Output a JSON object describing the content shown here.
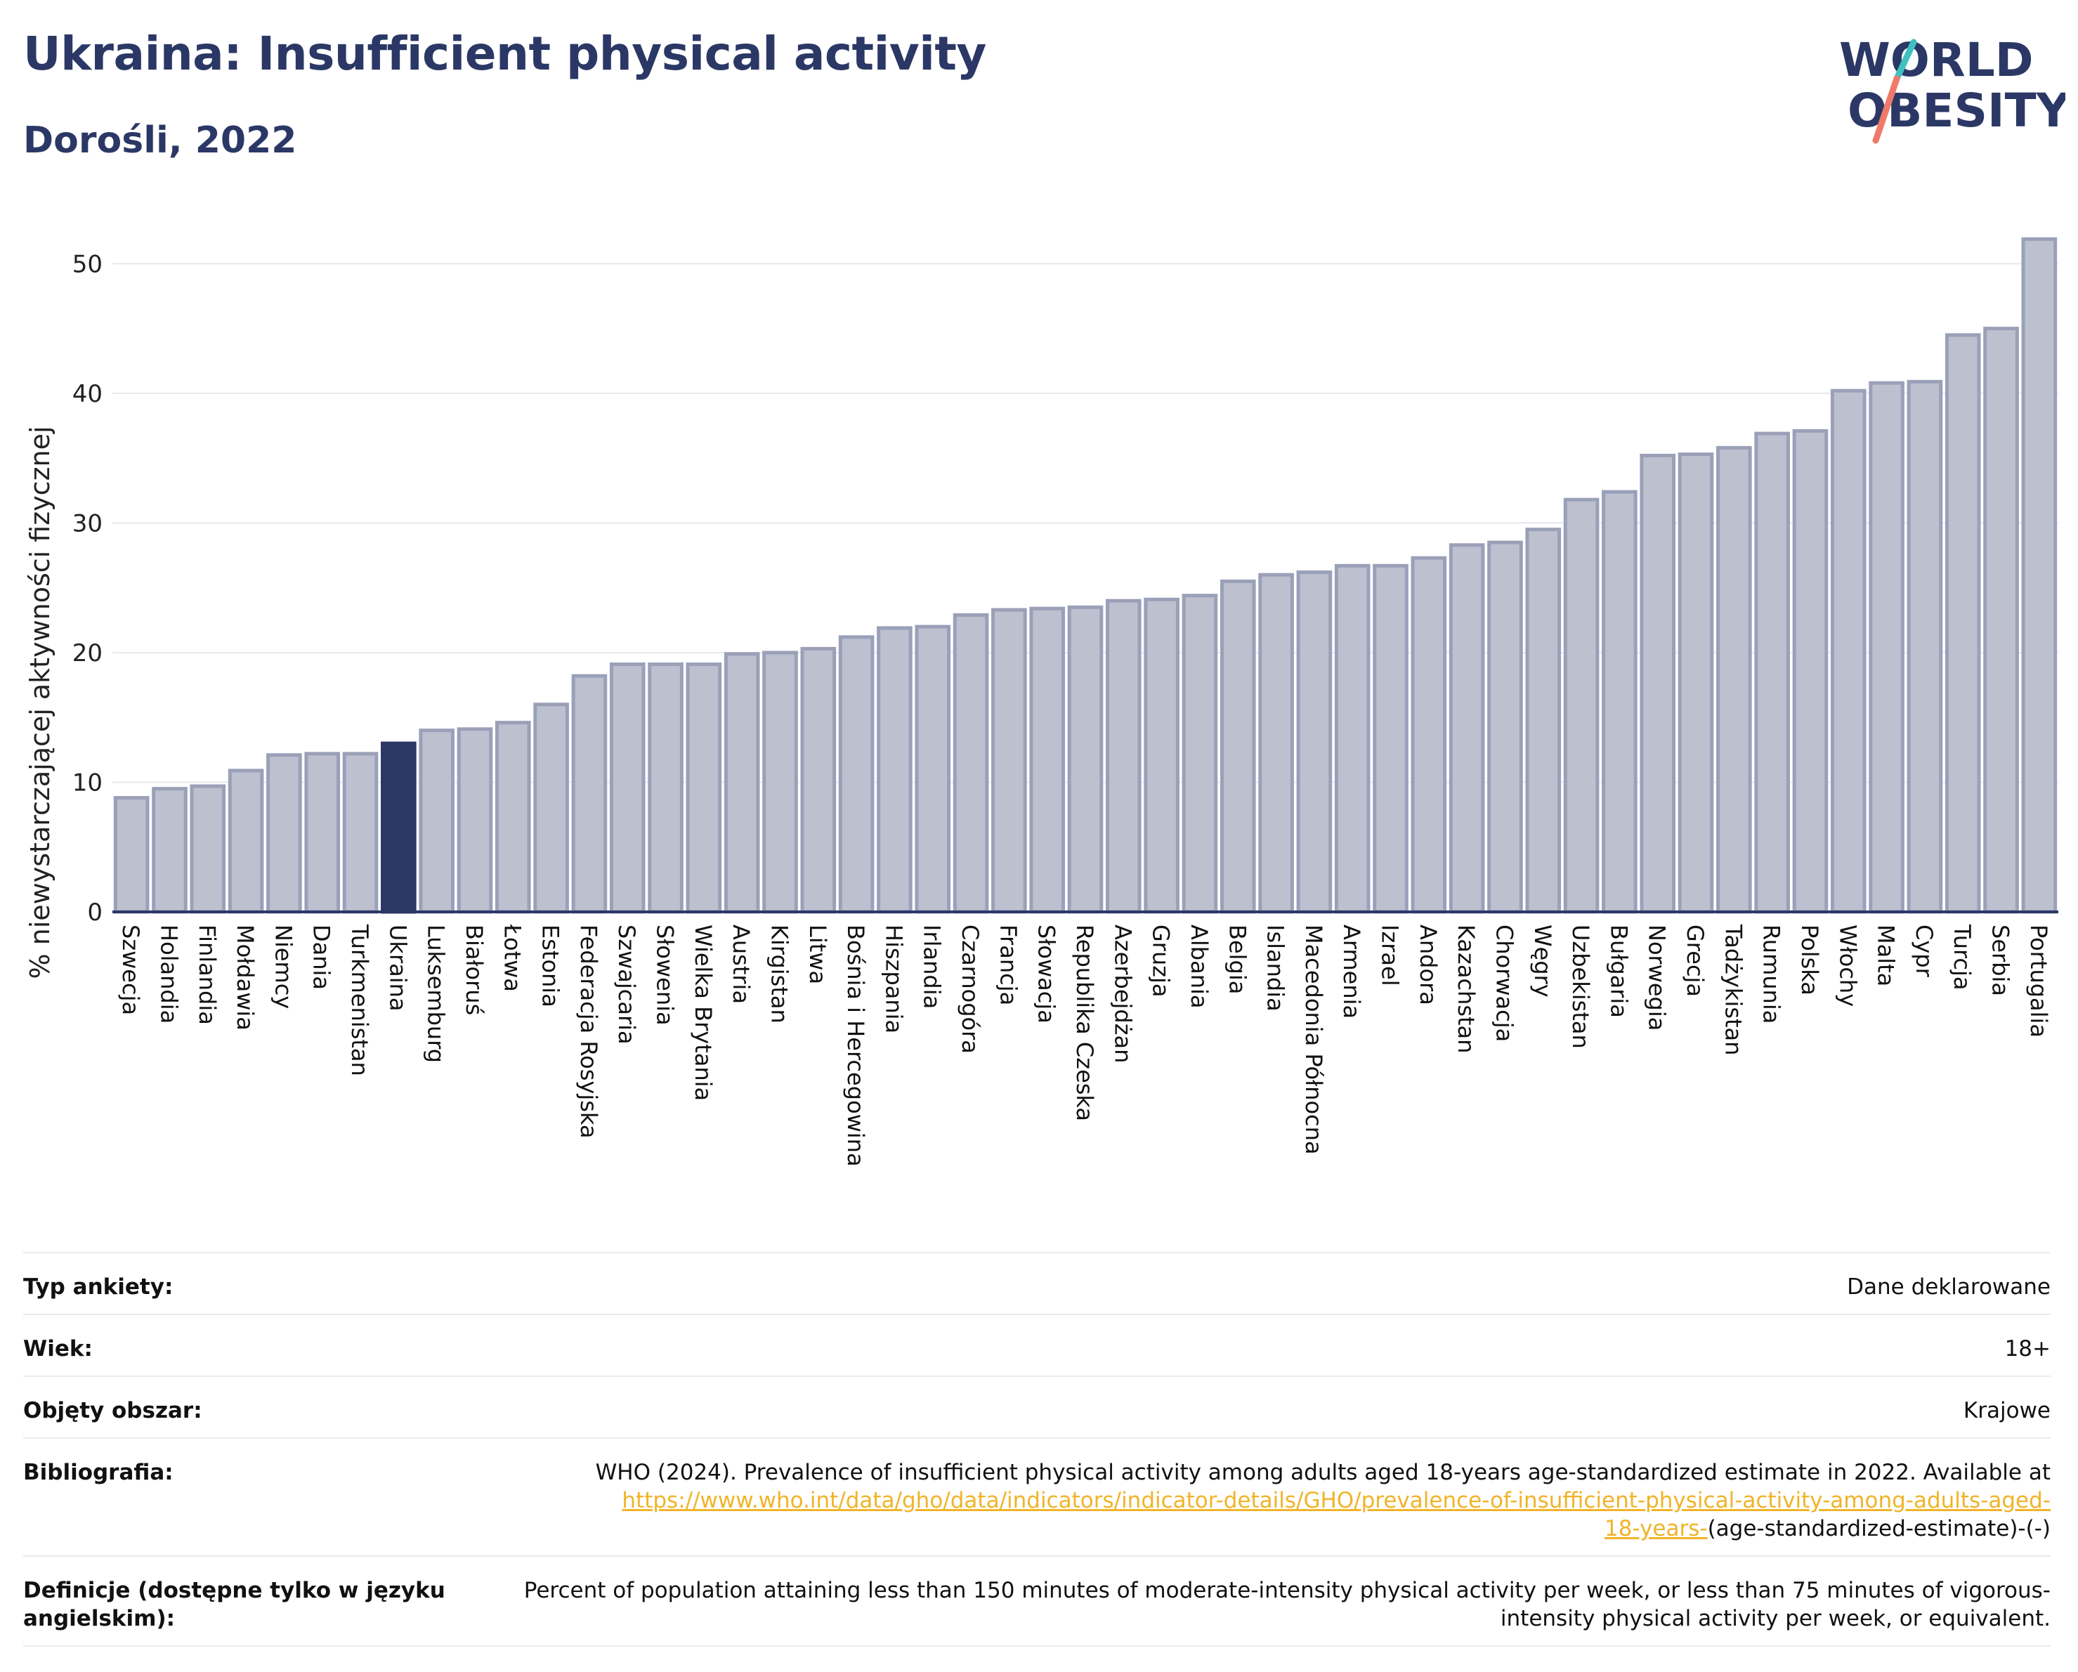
{
  "header": {
    "title": "Ukraina: Insufficient physical activity",
    "subtitle": "Dorośli, 2022"
  },
  "logo": {
    "line1": "WORLD",
    "line2": "OBESITY"
  },
  "colors": {
    "title": "#2b3866",
    "bar": "#bcc0cf",
    "bar_stroke": "#9aa0b8",
    "highlight": "#2b3866",
    "grid": "#e6e8ef",
    "link": "#f0b429",
    "logo_teal": "#3fc1c0",
    "logo_coral": "#f07a6a"
  },
  "chart_data": {
    "type": "bar",
    "ylabel": "% niewystarczającej aktywności fizycznej",
    "ylim": [
      0,
      53
    ],
    "yticks": [
      0,
      10,
      20,
      30,
      40,
      50
    ],
    "highlight": "Ukraina",
    "grid": true,
    "categories": [
      "Szwecja",
      "Holandia",
      "Finlandia",
      "Mołdawia",
      "Niemcy",
      "Dania",
      "Turkmenistan",
      "Ukraina",
      "Luksemburg",
      "Białoruś",
      "Łotwa",
      "Estonia",
      "Federacja Rosyjska",
      "Szwajcaria",
      "Słowenia",
      "Wielka Brytania",
      "Austria",
      "Kirgistan",
      "Litwa",
      "Bośnia i Hercegowina",
      "Hiszpania",
      "Irlandia",
      "Czarnogóra",
      "Francja",
      "Słowacja",
      "Republika Czeska",
      "Azerbejdżan",
      "Gruzja",
      "Albania",
      "Belgia",
      "Islandia",
      "Macedonia Północna",
      "Armenia",
      "Izrael",
      "Andora",
      "Kazachstan",
      "Chorwacja",
      "Węgry",
      "Uzbekistan",
      "Bułgaria",
      "Norwegia",
      "Grecja",
      "Tadżykistan",
      "Rumunia",
      "Polska",
      "Włochy",
      "Malta",
      "Cypr",
      "Turcja",
      "Serbia",
      "Portugalia"
    ],
    "values": [
      8.8,
      9.5,
      9.7,
      10.9,
      12.1,
      12.2,
      12.2,
      13.0,
      14.0,
      14.1,
      14.6,
      16.0,
      18.2,
      19.1,
      19.1,
      19.1,
      19.9,
      20.0,
      20.3,
      21.2,
      21.9,
      22.0,
      22.9,
      23.3,
      23.4,
      23.5,
      24.0,
      24.1,
      24.4,
      25.5,
      26.0,
      26.2,
      26.7,
      26.7,
      27.3,
      28.3,
      28.5,
      29.5,
      31.8,
      32.4,
      35.2,
      35.3,
      35.8,
      36.9,
      37.1,
      40.2,
      40.8,
      40.9,
      44.5,
      45.0,
      51.9
    ]
  },
  "info": {
    "survey_label": "Typ ankiety:",
    "survey_value": "Dane deklarowane",
    "age_label": "Wiek:",
    "age_value": "18+",
    "area_label": "Objęty obszar:",
    "area_value": "Krajowe",
    "biblio_label": "Bibliografia:",
    "biblio_text": "WHO (2024). Prevalence of insufficient physical activity among adults aged 18-years age-standardized estimate in 2022. Available at",
    "biblio_link_1": "https://www.who.int/data/gho/data/indicators/indicator-details/GHO/prevalence-of-insufficient-physical-activity-among-adults-aged-",
    "biblio_link_2": "18-years-",
    "biblio_tail": "(age-standardized-estimate)-(-)",
    "def_label": "Definicje (dostępne tylko w języku angielskim):",
    "def_text": "Percent of population attaining less than 150 minutes of moderate-intensity physical activity per week, or less than 75 minutes of vigorous-intensity physical activity per week, or equivalent."
  }
}
